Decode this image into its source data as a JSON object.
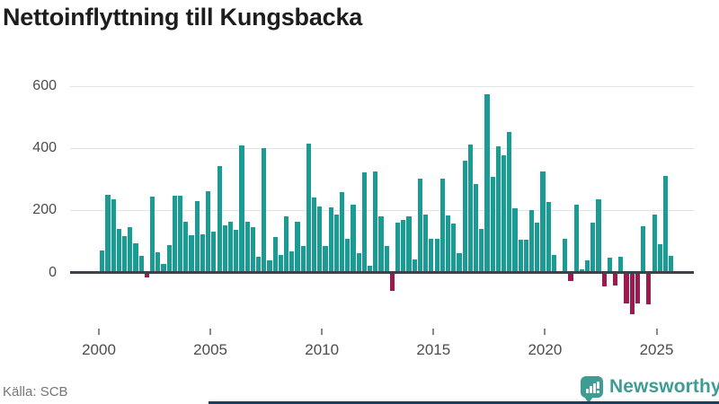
{
  "title": "Nettoinflyttning till Kungsbacka",
  "source": "Källa: SCB",
  "logo": {
    "wordmark": "Newsworthy",
    "icon": "newsworthy-speech-bubble-bar-chart-icon"
  },
  "colors": {
    "positive": "#1a9c94",
    "negative": "#9b1b4e",
    "axis": "#3b4249",
    "grid": "#e3e3e3",
    "tick": "#8a8a8a",
    "axis_label": "#4d4d4d",
    "title_text": "#1d1d1d",
    "source_text": "#767676",
    "logo_teal": "#3e9c95",
    "footer_bar": "#1d3d5c"
  },
  "chart_data": {
    "type": "bar",
    "title": "Nettoinflyttning till Kungsbacka",
    "xlabel": "",
    "ylabel": "",
    "x_start": "2000 Q1",
    "x_end": "2025 Q3",
    "interval": "quarter",
    "x_tick_years": [
      2000,
      2005,
      2010,
      2015,
      2020,
      2025
    ],
    "x_tick_labels": [
      "2000",
      "2005",
      "2010",
      "2015",
      "2020",
      "2025"
    ],
    "y_ticks": [
      0,
      200,
      400,
      600
    ],
    "y_tick_labels": [
      "0",
      "200",
      "400",
      "600"
    ],
    "ylim": [
      -150,
      620
    ],
    "grid": "horizontal",
    "legend": "none",
    "values": [
      70,
      250,
      235,
      140,
      118,
      145,
      94,
      54,
      -15,
      244,
      65,
      29,
      90,
      246,
      246,
      164,
      121,
      229,
      123,
      261,
      133,
      343,
      153,
      163,
      138,
      410,
      163,
      145,
      50,
      400,
      41,
      115,
      56,
      182,
      68,
      163,
      85,
      414,
      243,
      213,
      86,
      210,
      188,
      258,
      109,
      219,
      62,
      321,
      23,
      326,
      181,
      87,
      -60,
      160,
      169,
      182,
      43,
      301,
      186,
      108,
      108,
      301,
      183,
      159,
      63,
      359,
      413,
      285,
      140,
      573,
      307,
      407,
      378,
      453,
      206,
      107,
      107,
      200,
      160,
      324,
      228,
      58,
      6,
      109,
      -27,
      218,
      11,
      39,
      160,
      236,
      -45,
      49,
      -42,
      51,
      -100,
      -135,
      -98,
      149,
      -103,
      186,
      92,
      310,
      54
    ]
  }
}
